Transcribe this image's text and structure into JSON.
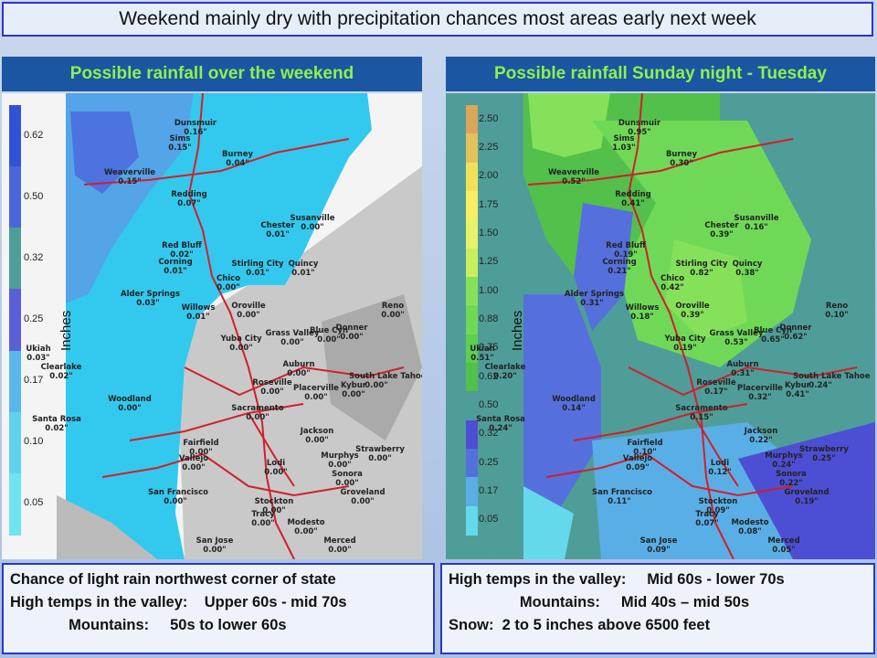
{
  "headline": "Weekend mainly dry with precipitation chances most areas early next week",
  "left_panel": {
    "title": "Possible rainfall over the weekend",
    "units_label": "Inches",
    "legend": [
      "0.62",
      "0.50",
      "0.32",
      "0.25",
      "0.17",
      "0.10",
      "0.05"
    ],
    "legend_colors": [
      "#2f52d6",
      "#4a66dd",
      "#4f9d99",
      "#5a5fd6",
      "#58b8ec",
      "#5fd2ee",
      "#6de4f0"
    ],
    "cities": [
      {
        "name": "Dunsmuir",
        "value": "0.16\""
      },
      {
        "name": "Sims",
        "value": "0.15\""
      },
      {
        "name": "Burney",
        "value": "0.04\""
      },
      {
        "name": "Weaverville",
        "value": "0.15\""
      },
      {
        "name": "Redding",
        "value": "0.07\""
      },
      {
        "name": "Susanville",
        "value": "0.00\""
      },
      {
        "name": "Chester",
        "value": "0.01\""
      },
      {
        "name": "Red Bluff",
        "value": "0.02\""
      },
      {
        "name": "Corning",
        "value": "0.01\""
      },
      {
        "name": "Stirling City",
        "value": "0.01\""
      },
      {
        "name": "Quincy",
        "value": "0.01\""
      },
      {
        "name": "Chico",
        "value": "0.00\""
      },
      {
        "name": "Alder Springs",
        "value": "0.03\""
      },
      {
        "name": "Willows",
        "value": "0.01\""
      },
      {
        "name": "Oroville",
        "value": "0.00\""
      },
      {
        "name": "Reno",
        "value": "0.00\""
      },
      {
        "name": "Blue Cyn",
        "value": "0.00\""
      },
      {
        "name": "Donner",
        "value": "0.00\""
      },
      {
        "name": "Ukiah",
        "value": "0.03\""
      },
      {
        "name": "Yuba City",
        "value": "0.00\""
      },
      {
        "name": "Grass Valley",
        "value": "0.00\""
      },
      {
        "name": "Clearlake",
        "value": "0.02\""
      },
      {
        "name": "Auburn",
        "value": "0.00\""
      },
      {
        "name": "South Lake Tahoe",
        "value": "0.00\""
      },
      {
        "name": "Roseville",
        "value": "0.00\""
      },
      {
        "name": "Placerville",
        "value": "0.00\""
      },
      {
        "name": "Kybur",
        "value": "0.00\""
      },
      {
        "name": "Woodland",
        "value": "0.00\""
      },
      {
        "name": "Sacramento",
        "value": "0.00\""
      },
      {
        "name": "Santa Rosa",
        "value": "0.02\""
      },
      {
        "name": "Jackson",
        "value": "0.00\""
      },
      {
        "name": "Fairfield",
        "value": "0.00\""
      },
      {
        "name": "Strawberry",
        "value": "0.00\""
      },
      {
        "name": "Vallejo",
        "value": "0.00\""
      },
      {
        "name": "Lodi",
        "value": "0.00\""
      },
      {
        "name": "Murphys",
        "value": "0.00\""
      },
      {
        "name": "Sonora",
        "value": "0.00\""
      },
      {
        "name": "San Francisco",
        "value": "0.00\""
      },
      {
        "name": "Stockton",
        "value": "0.00\""
      },
      {
        "name": "Groveland",
        "value": "0.00\""
      },
      {
        "name": "Tracy",
        "value": "0.00\""
      },
      {
        "name": "Modesto",
        "value": "0.00\""
      },
      {
        "name": "San Jose",
        "value": "0.00\""
      },
      {
        "name": "Merced",
        "value": "0.00\""
      }
    ],
    "info_lines": [
      "Chance of light rain northwest corner of state",
      "High temps in the valley:    Upper 60s - mid 70s",
      "              Mountains:     50s to lower 60s"
    ]
  },
  "right_panel": {
    "title": "Possible rainfall Sunday night - Tuesday",
    "units_label": "Inches",
    "legend": [
      "2.50",
      "2.25",
      "2.00",
      "1.75",
      "1.50",
      "1.25",
      "1.00",
      "0.88",
      "0.75",
      "0.62",
      "0.50",
      "0.32",
      "0.25",
      "0.17",
      "0.05"
    ],
    "legend_colors": [
      "#d9a65a",
      "#e3c25d",
      "#f0e05a",
      "#f7ee63",
      "#e9f36a",
      "#c8ef5e",
      "#86e15a",
      "#6fd957",
      "#5fcf50",
      "#52c04a",
      "#4f9d99",
      "#4c4fd3",
      "#5570dc",
      "#5aaee6",
      "#65d9ec"
    ],
    "cities": [
      {
        "name": "Dunsmuir",
        "value": "0.95\""
      },
      {
        "name": "Sims",
        "value": "1.03\""
      },
      {
        "name": "Burney",
        "value": "0.30\""
      },
      {
        "name": "Weaverville",
        "value": "0.52\""
      },
      {
        "name": "Redding",
        "value": "0.41\""
      },
      {
        "name": "Susanville",
        "value": "0.16\""
      },
      {
        "name": "Chester",
        "value": "0.39\""
      },
      {
        "name": "Red Bluff",
        "value": "0.19\""
      },
      {
        "name": "Corning",
        "value": "0.21\""
      },
      {
        "name": "Stirling City",
        "value": "0.82\""
      },
      {
        "name": "Quincy",
        "value": "0.38\""
      },
      {
        "name": "Chico",
        "value": "0.42\""
      },
      {
        "name": "Alder Springs",
        "value": "0.31\""
      },
      {
        "name": "Willows",
        "value": "0.18\""
      },
      {
        "name": "Oroville",
        "value": "0.39\""
      },
      {
        "name": "Reno",
        "value": "0.10\""
      },
      {
        "name": "Blue Cyn",
        "value": "0.65\""
      },
      {
        "name": "Donner",
        "value": "0.62\""
      },
      {
        "name": "Ukiah",
        "value": "0.51\""
      },
      {
        "name": "Yuba City",
        "value": "0.19\""
      },
      {
        "name": "Grass Valley",
        "value": "0.53\""
      },
      {
        "name": "Clearlake",
        "value": "0.20\""
      },
      {
        "name": "Auburn",
        "value": "0.31\""
      },
      {
        "name": "South Lake Tahoe",
        "value": "0.24\""
      },
      {
        "name": "Roseville",
        "value": "0.17\""
      },
      {
        "name": "Placerville",
        "value": "0.32\""
      },
      {
        "name": "Kybur",
        "value": "0.41\""
      },
      {
        "name": "Woodland",
        "value": "0.14\""
      },
      {
        "name": "Sacramento",
        "value": "0.15\""
      },
      {
        "name": "Santa Rosa",
        "value": "0.24\""
      },
      {
        "name": "Jackson",
        "value": "0.22\""
      },
      {
        "name": "Fairfield",
        "value": "0.10\""
      },
      {
        "name": "Strawberry",
        "value": "0.25\""
      },
      {
        "name": "Vallejo",
        "value": "0.09\""
      },
      {
        "name": "Lodi",
        "value": "0.12\""
      },
      {
        "name": "Murphys",
        "value": "0.24\""
      },
      {
        "name": "Sonora",
        "value": "0.22\""
      },
      {
        "name": "San Francisco",
        "value": "0.11\""
      },
      {
        "name": "Stockton",
        "value": "0.09\""
      },
      {
        "name": "Groveland",
        "value": "0.19\""
      },
      {
        "name": "Tracy",
        "value": "0.07\""
      },
      {
        "name": "Modesto",
        "value": "0.08\""
      },
      {
        "name": "San Jose",
        "value": "0.09\""
      },
      {
        "name": "Merced",
        "value": "0.05\""
      }
    ],
    "info_lines": [
      "High temps in the valley:     Mid 60s - lower 70s",
      "                 Mountains:     Mid 40s – mid 50s",
      "Snow:  2 to 5 inches above 6500 feet"
    ]
  }
}
